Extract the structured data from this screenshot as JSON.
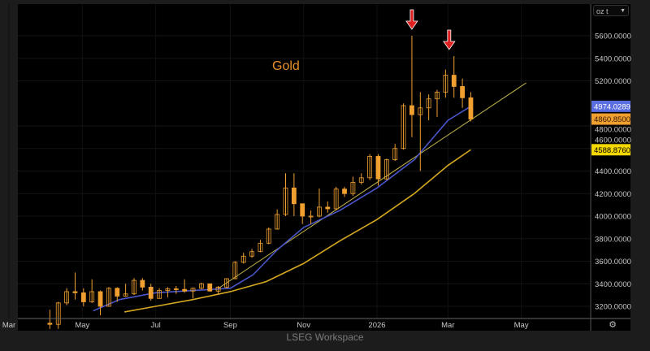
{
  "footer": "LSEG Workspace",
  "unit_selector": {
    "value": "oz t",
    "icon": "chevron-down-icon"
  },
  "settings_icon": "gear-icon",
  "colors": {
    "candle": "#f0a030",
    "ma_short": "#4a55c8",
    "ma_long": "#d4a820",
    "trendline": "#c8b84a",
    "arrow": "#e02020",
    "title": "#e8902a",
    "background": "#000000"
  },
  "chart_data": {
    "type": "candlestick",
    "title": "Gold",
    "ylim": [
      3100,
      5800
    ],
    "y_ticks": [
      "5600.0000",
      "5400.0000",
      "5200.0000",
      "4800.0000",
      "4600.0000",
      "4400.0000",
      "4200.0000",
      "4000.0000",
      "3800.0000",
      "3600.0000",
      "3400.0000",
      "3200.0000"
    ],
    "x_ticks": [
      {
        "label": "Mar",
        "date": "2025-03-01"
      },
      {
        "label": "May",
        "date": "2025-05-01"
      },
      {
        "label": "Jul",
        "date": "2025-07-01"
      },
      {
        "label": "Sep",
        "date": "2025-09-01"
      },
      {
        "label": "Nov",
        "date": "2025-11-01"
      },
      {
        "label": "2026",
        "date": "2026-01-01"
      },
      {
        "label": "Mar",
        "date": "2026-03-01"
      },
      {
        "label": "May",
        "date": "2026-05-01"
      }
    ],
    "xlim": [
      "2025-03-01",
      "2026-06-25"
    ],
    "price_labels": [
      {
        "value": "4974.0289",
        "bg": "#5b6ee1",
        "fg": "#ffffff"
      },
      {
        "value": "4860.8500",
        "bg": "#f0a030",
        "fg": "#3a1a00"
      },
      {
        "value": "4588.8760",
        "bg": "#f5d800",
        "fg": "#000000"
      }
    ],
    "ohlc": [
      [
        "2025-04-04",
        3050,
        3170,
        3000,
        3040
      ],
      [
        "2025-04-11",
        3040,
        3240,
        3000,
        3230
      ],
      [
        "2025-04-18",
        3230,
        3360,
        3210,
        3330
      ],
      [
        "2025-04-25",
        3330,
        3500,
        3260,
        3320
      ],
      [
        "2025-05-02",
        3320,
        3360,
        3200,
        3240
      ],
      [
        "2025-05-09",
        3240,
        3440,
        3230,
        3330
      ],
      [
        "2025-05-16",
        3330,
        3340,
        3120,
        3200
      ],
      [
        "2025-05-23",
        3200,
        3370,
        3200,
        3360
      ],
      [
        "2025-05-30",
        3360,
        3370,
        3240,
        3290
      ],
      [
        "2025-06-06",
        3290,
        3400,
        3290,
        3310
      ],
      [
        "2025-06-13",
        3310,
        3450,
        3300,
        3430
      ],
      [
        "2025-06-20",
        3430,
        3450,
        3340,
        3370
      ],
      [
        "2025-06-27",
        3370,
        3400,
        3250,
        3270
      ],
      [
        "2025-07-04",
        3270,
        3360,
        3270,
        3340
      ],
      [
        "2025-07-11",
        3340,
        3370,
        3280,
        3355
      ],
      [
        "2025-07-18",
        3355,
        3380,
        3310,
        3350
      ],
      [
        "2025-07-25",
        3350,
        3440,
        3320,
        3335
      ],
      [
        "2025-08-01",
        3335,
        3365,
        3270,
        3360
      ],
      [
        "2025-08-08",
        3360,
        3410,
        3350,
        3400
      ],
      [
        "2025-08-15",
        3400,
        3400,
        3330,
        3335
      ],
      [
        "2025-08-22",
        3335,
        3380,
        3310,
        3370
      ],
      [
        "2025-08-29",
        3370,
        3450,
        3360,
        3445
      ],
      [
        "2025-09-05",
        3445,
        3600,
        3440,
        3590
      ],
      [
        "2025-09-12",
        3590,
        3675,
        3580,
        3645
      ],
      [
        "2025-09-19",
        3645,
        3710,
        3630,
        3685
      ],
      [
        "2025-09-26",
        3685,
        3790,
        3680,
        3760
      ],
      [
        "2025-10-03",
        3760,
        3900,
        3750,
        3885
      ],
      [
        "2025-10-10",
        3885,
        4060,
        3880,
        4015
      ],
      [
        "2025-10-17",
        4015,
        4380,
        4000,
        4250
      ],
      [
        "2025-10-24",
        4250,
        4380,
        4000,
        4110
      ],
      [
        "2025-10-31",
        4110,
        4110,
        3930,
        4000
      ],
      [
        "2025-11-07",
        4000,
        4050,
        3930,
        4000
      ],
      [
        "2025-11-14",
        4000,
        4245,
        3990,
        4080
      ],
      [
        "2025-11-21",
        4080,
        4130,
        4030,
        4065
      ],
      [
        "2025-11-28",
        4065,
        4260,
        4050,
        4240
      ],
      [
        "2025-12-05",
        4240,
        4260,
        4170,
        4200
      ],
      [
        "2025-12-12",
        4200,
        4350,
        4180,
        4300
      ],
      [
        "2025-12-19",
        4300,
        4380,
        4280,
        4340
      ],
      [
        "2025-12-26",
        4340,
        4550,
        4320,
        4530
      ],
      [
        "2026-01-02",
        4530,
        4550,
        4270,
        4330
      ],
      [
        "2026-01-09",
        4330,
        4510,
        4320,
        4500
      ],
      [
        "2026-01-16",
        4500,
        4640,
        4490,
        4600
      ],
      [
        "2026-01-23",
        4600,
        5000,
        4590,
        4980
      ],
      [
        "2026-01-30",
        4980,
        5600,
        4700,
        4900
      ],
      [
        "2026-02-06",
        4900,
        5100,
        4400,
        4960
      ],
      [
        "2026-02-13",
        4960,
        5080,
        4850,
        5040
      ],
      [
        "2026-02-20",
        5040,
        5120,
        4880,
        5100
      ],
      [
        "2026-02-27",
        5100,
        5300,
        5050,
        5250
      ],
      [
        "2026-03-06",
        5250,
        5420,
        5050,
        5150
      ],
      [
        "2026-03-13",
        5150,
        5220,
        4960,
        5050
      ],
      [
        "2026-03-20",
        5050,
        5100,
        4840,
        4860
      ]
    ],
    "series": [
      {
        "type": "line",
        "color": "#4a55c8",
        "points": [
          [
            "2025-05-10",
            3160
          ],
          [
            "2025-06-01",
            3260
          ],
          [
            "2025-07-01",
            3320
          ],
          [
            "2025-08-01",
            3340
          ],
          [
            "2025-09-01",
            3360
          ],
          [
            "2025-09-20",
            3480
          ],
          [
            "2025-10-10",
            3700
          ],
          [
            "2025-11-01",
            3900
          ],
          [
            "2025-12-01",
            4050
          ],
          [
            "2026-01-01",
            4250
          ],
          [
            "2026-02-01",
            4500
          ],
          [
            "2026-03-01",
            4850
          ],
          [
            "2026-03-20",
            4974
          ]
        ]
      },
      {
        "type": "line",
        "color": "#d4a820",
        "points": [
          [
            "2025-06-05",
            3150
          ],
          [
            "2025-07-01",
            3200
          ],
          [
            "2025-08-01",
            3260
          ],
          [
            "2025-09-01",
            3330
          ],
          [
            "2025-10-01",
            3420
          ],
          [
            "2025-11-01",
            3580
          ],
          [
            "2025-12-01",
            3780
          ],
          [
            "2026-01-01",
            3970
          ],
          [
            "2026-02-01",
            4200
          ],
          [
            "2026-03-01",
            4450
          ],
          [
            "2026-03-20",
            4589
          ]
        ]
      }
    ],
    "trendline": [
      [
        "2025-08-20",
        3344
      ],
      [
        "2026-05-05",
        5182
      ]
    ],
    "annotations": [
      {
        "type": "down-arrow",
        "date": "2026-01-30",
        "price": 5600
      },
      {
        "type": "down-arrow",
        "date": "2026-03-02",
        "price": 5420
      }
    ]
  }
}
